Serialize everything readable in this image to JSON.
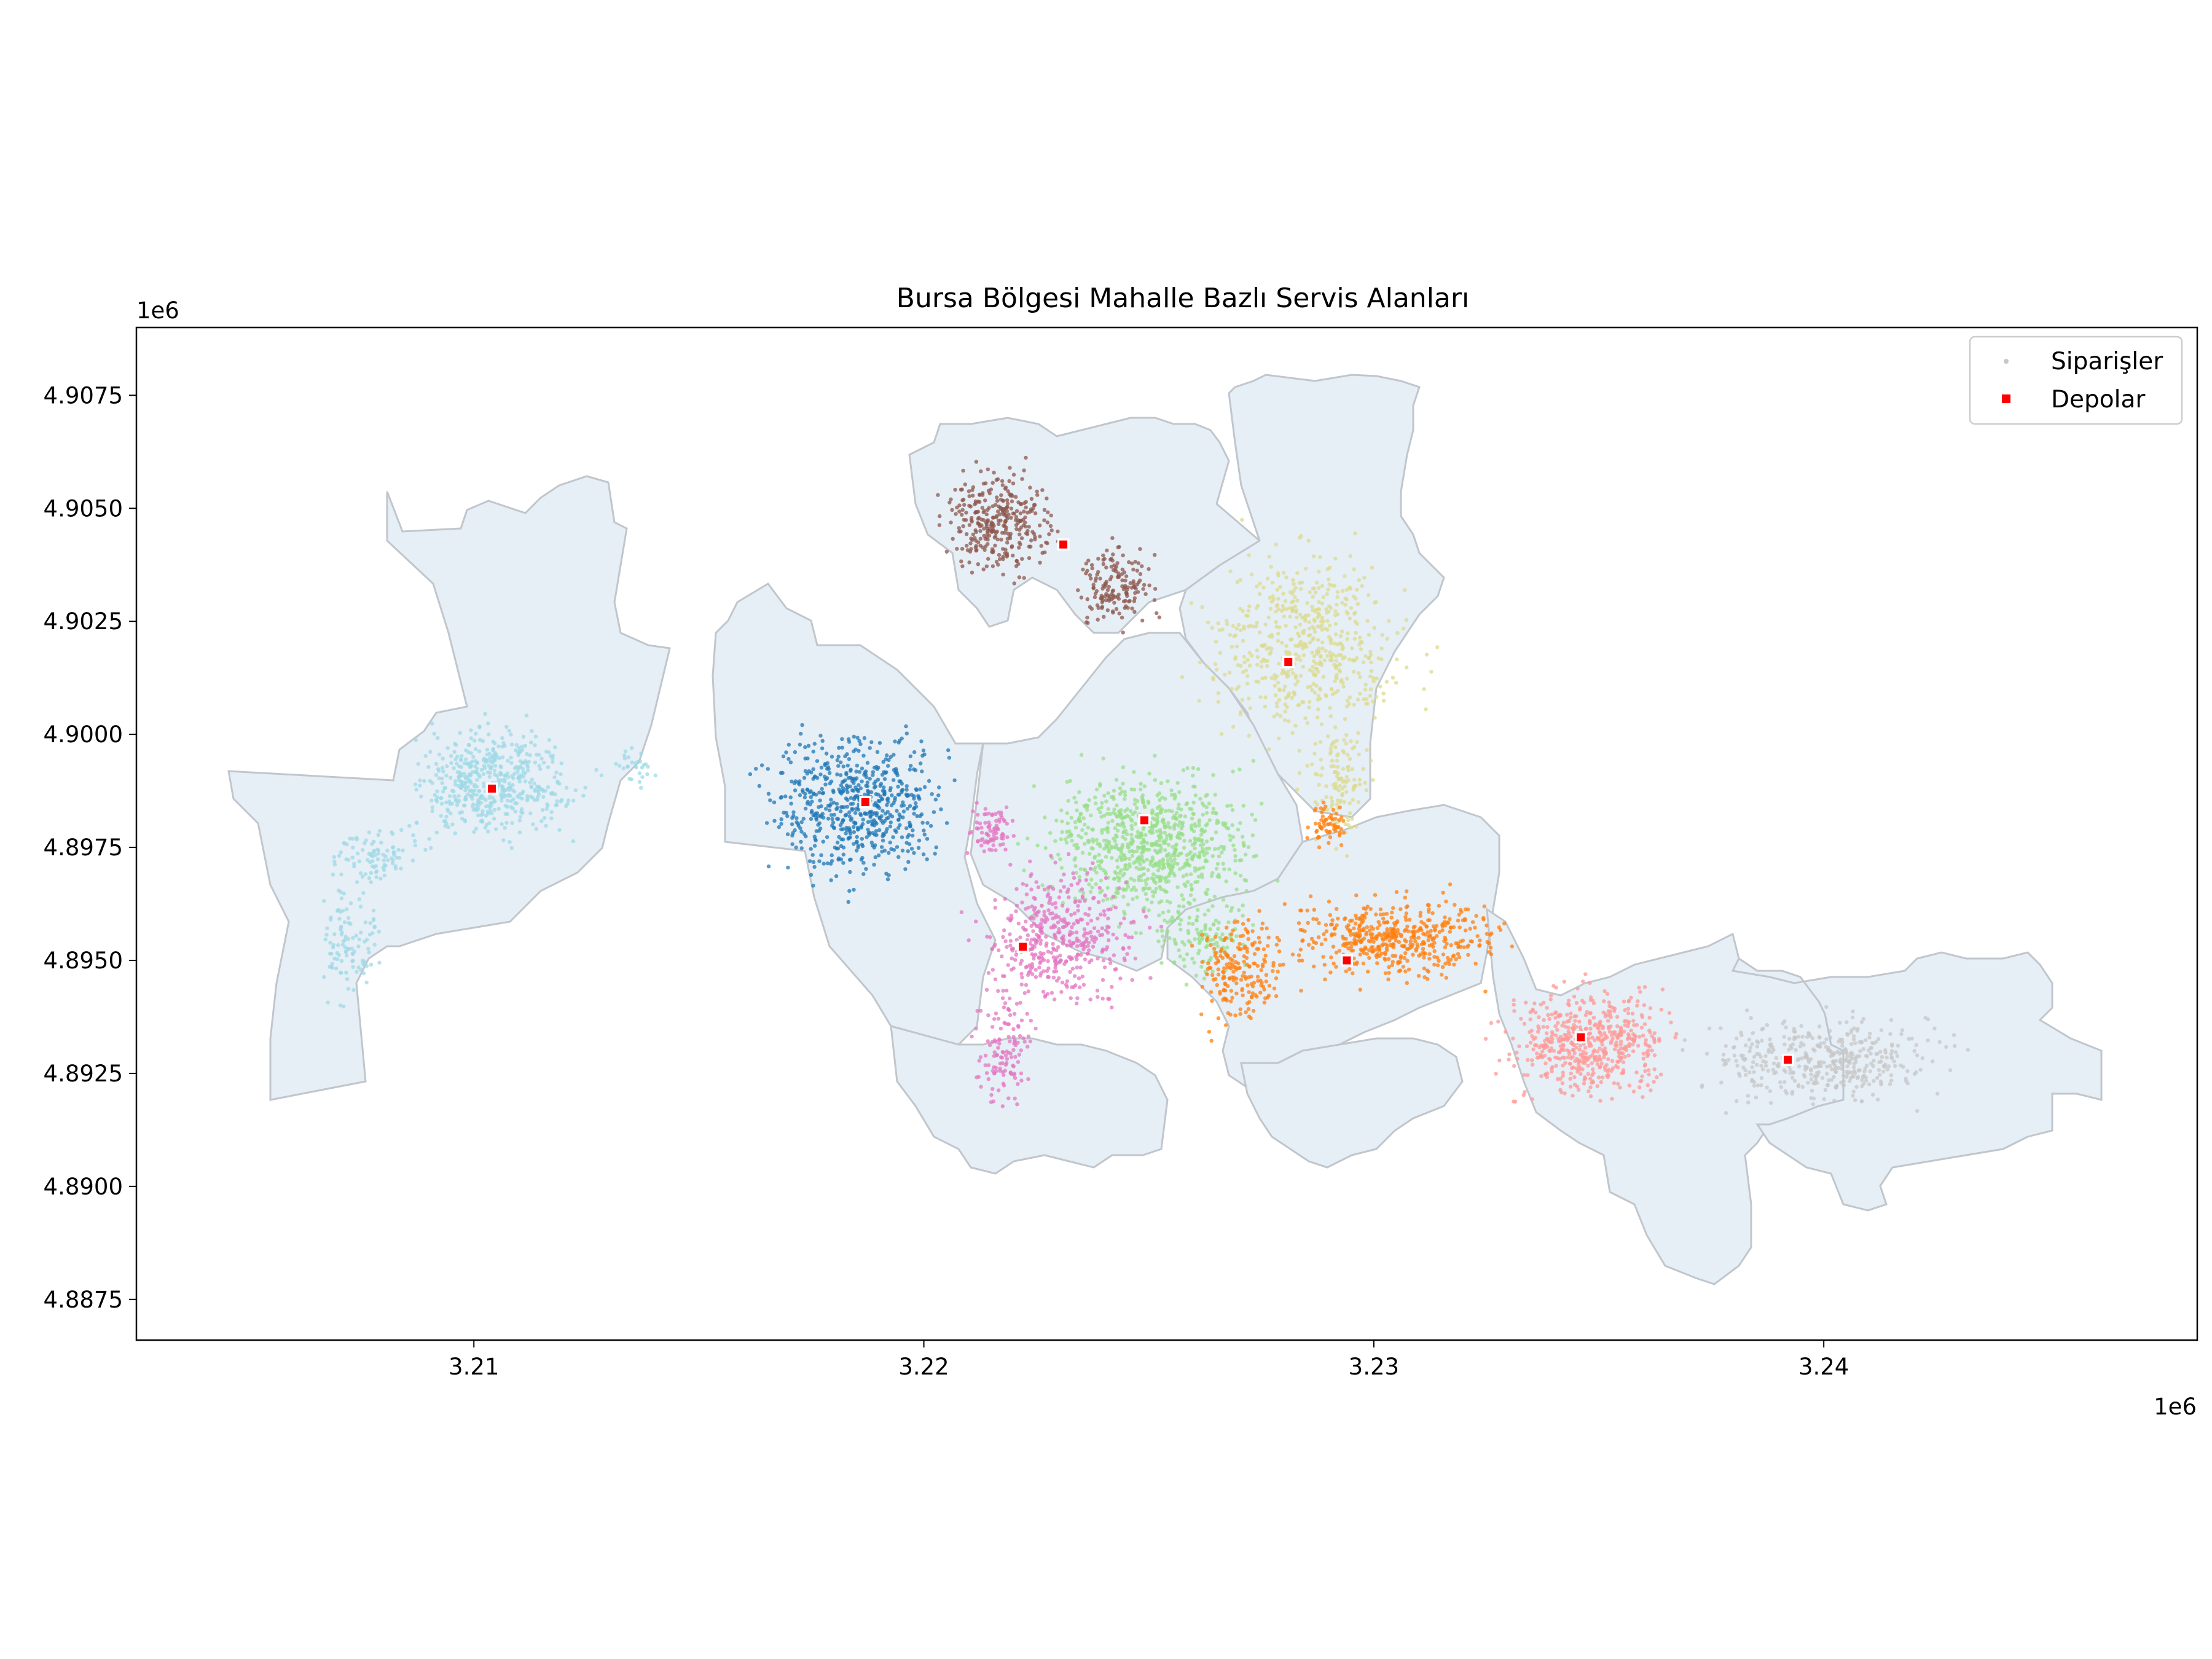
{
  "chart_data": {
    "type": "scatter",
    "title": "Bursa Bölgesi Mahalle Bazlı Servis Alanları",
    "x_offset_label": "1e6",
    "y_offset_label": "1e6",
    "xlim": [
      3.2025,
      3.2483
    ],
    "ylim": [
      4.8866,
      4.909
    ],
    "x_ticks": [
      {
        "value": 3.21,
        "label": "3.21"
      },
      {
        "value": 3.22,
        "label": "3.22"
      },
      {
        "value": 3.23,
        "label": "3.23"
      },
      {
        "value": 3.24,
        "label": "3.24"
      }
    ],
    "y_ticks": [
      {
        "value": 4.8875,
        "label": "4.8875"
      },
      {
        "value": 4.89,
        "label": "4.8900"
      },
      {
        "value": 4.8925,
        "label": "4.8925"
      },
      {
        "value": 4.895,
        "label": "4.8950"
      },
      {
        "value": 4.8975,
        "label": "4.8975"
      },
      {
        "value": 4.9,
        "label": "4.9000"
      },
      {
        "value": 4.9025,
        "label": "4.9025"
      },
      {
        "value": 4.905,
        "label": "4.9050"
      },
      {
        "value": 4.9075,
        "label": "4.9075"
      }
    ],
    "grid": false,
    "legend_position": "top-right",
    "legend": [
      {
        "label": "Siparişler",
        "marker": "dot",
        "color": "#c7c7c7"
      },
      {
        "label": "Depolar",
        "marker": "square",
        "color": "#ff0000"
      }
    ],
    "region_fill": "#e6eef6",
    "region_stroke": "#c0c6cc",
    "service_areas": [
      {
        "color": "#9edae5",
        "depot": [
          3.2104,
          4.8988
        ],
        "clusters": [
          [
            3.2105,
            4.8989,
            0.0018,
            0.0012,
            520
          ],
          [
            3.2078,
            4.8973,
            0.0012,
            0.0007,
            90
          ],
          [
            3.2072,
            4.8955,
            0.0007,
            0.0013,
            110
          ],
          [
            3.2135,
            4.8993,
            0.0006,
            0.0004,
            30
          ]
        ]
      },
      {
        "color": "#1f77b4",
        "depot": [
          3.2187,
          4.8985
        ],
        "clusters": [
          [
            3.2185,
            4.8984,
            0.002,
            0.0016,
            620
          ]
        ]
      },
      {
        "color": "#8c564b",
        "depot": [
          3.2231,
          4.9042
        ],
        "clusters": [
          [
            3.2217,
            4.9047,
            0.0012,
            0.0012,
            330
          ],
          [
            3.2243,
            4.9033,
            0.0009,
            0.0009,
            160
          ]
        ]
      },
      {
        "color": "#dbdb8d",
        "depot": [
          3.2281,
          4.9016
        ],
        "clusters": [
          [
            3.2285,
            4.902,
            0.0022,
            0.0022,
            560
          ],
          [
            3.2292,
            4.8988,
            0.0007,
            0.0013,
            120
          ]
        ]
      },
      {
        "color": "#98df8a",
        "depot": [
          3.2249,
          4.8981
        ],
        "clusters": [
          [
            3.225,
            4.8976,
            0.0022,
            0.0016,
            820
          ],
          [
            3.2262,
            4.8955,
            0.0012,
            0.0008,
            120
          ]
        ]
      },
      {
        "color": "#e377c2",
        "depot": [
          3.2222,
          4.8953
        ],
        "clusters": [
          [
            3.223,
            4.8955,
            0.0016,
            0.0015,
            440
          ],
          [
            3.2218,
            4.893,
            0.0006,
            0.0012,
            120
          ],
          [
            3.2215,
            4.8978,
            0.0005,
            0.0006,
            80
          ]
        ]
      },
      {
        "color": "#ff7f0e",
        "depot": [
          3.2294,
          4.895
        ],
        "clusters": [
          [
            3.2305,
            4.8955,
            0.0022,
            0.0009,
            480
          ],
          [
            3.227,
            4.8948,
            0.0009,
            0.0012,
            200
          ],
          [
            3.229,
            4.898,
            0.0005,
            0.0005,
            60
          ]
        ]
      },
      {
        "color": "#ff9896",
        "depot": [
          3.2346,
          4.8933
        ],
        "clusters": [
          [
            3.2348,
            4.8932,
            0.0018,
            0.0012,
            540
          ]
        ]
      },
      {
        "color": "#c7c7c7",
        "depot": [
          3.2392,
          4.8928
        ],
        "clusters": [
          [
            3.24,
            4.8928,
            0.0028,
            0.001,
            430
          ]
        ]
      }
    ]
  }
}
